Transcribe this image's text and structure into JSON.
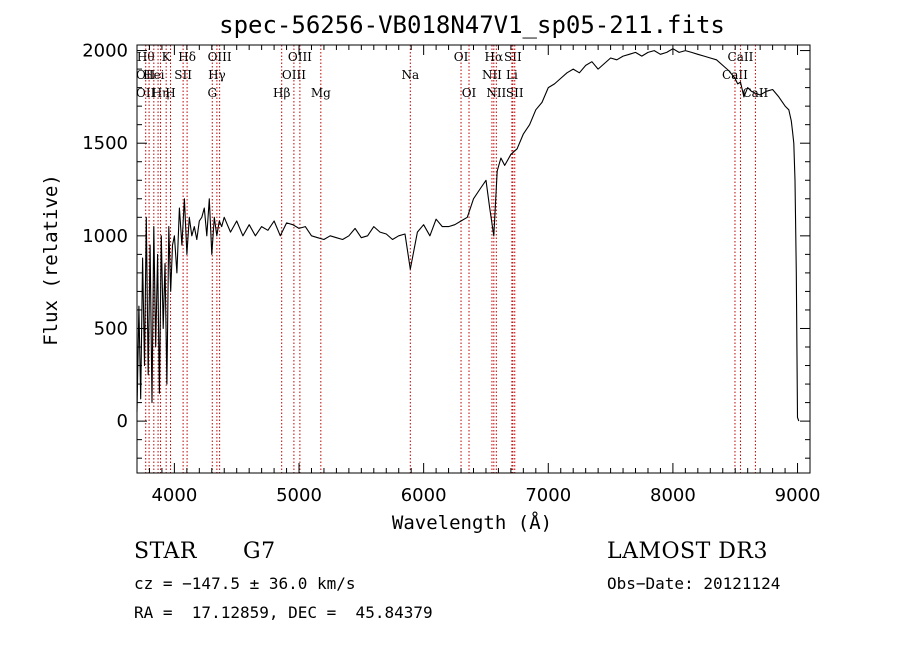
{
  "chart_data": {
    "type": "line",
    "title": "spec-56256-VB018N47V1_sp05-211.fits",
    "xlabel": "Wavelength (Å)",
    "ylabel": "Flux (relative)",
    "xlim": [
      3700,
      9100
    ],
    "ylim": [
      -280,
      2030
    ],
    "xticks": [
      4000,
      5000,
      6000,
      7000,
      8000,
      9000
    ],
    "yticks": [
      0,
      500,
      1000,
      1500,
      2000
    ],
    "grid": false,
    "series": [
      {
        "name": "flux",
        "x": [
          3700,
          3715,
          3730,
          3745,
          3760,
          3775,
          3790,
          3805,
          3820,
          3835,
          3850,
          3865,
          3880,
          3895,
          3910,
          3925,
          3940,
          3955,
          3970,
          3985,
          4000,
          4020,
          4040,
          4060,
          4080,
          4100,
          4120,
          4140,
          4160,
          4180,
          4200,
          4220,
          4240,
          4260,
          4280,
          4300,
          4320,
          4340,
          4360,
          4380,
          4400,
          4450,
          4500,
          4550,
          4600,
          4650,
          4700,
          4750,
          4800,
          4850,
          4900,
          4950,
          5000,
          5050,
          5100,
          5150,
          5200,
          5250,
          5300,
          5350,
          5400,
          5450,
          5500,
          5550,
          5600,
          5650,
          5700,
          5750,
          5800,
          5850,
          5893,
          5950,
          6000,
          6050,
          6100,
          6150,
          6200,
          6250,
          6300,
          6350,
          6400,
          6450,
          6500,
          6530,
          6563,
          6590,
          6620,
          6650,
          6700,
          6750,
          6800,
          6850,
          6900,
          6950,
          7000,
          7050,
          7100,
          7150,
          7200,
          7250,
          7300,
          7350,
          7400,
          7450,
          7500,
          7550,
          7600,
          7650,
          7700,
          7750,
          7800,
          7850,
          7900,
          7950,
          8000,
          8050,
          8100,
          8150,
          8200,
          8250,
          8300,
          8350,
          8400,
          8450,
          8498,
          8520,
          8542,
          8570,
          8600,
          8630,
          8662,
          8700,
          8750,
          8800,
          8850,
          8900,
          8930,
          8950,
          8960,
          8970,
          8980,
          8990,
          9000,
          9010
        ],
        "y": [
          50,
          620,
          120,
          880,
          300,
          1100,
          250,
          950,
          100,
          1050,
          400,
          900,
          150,
          1000,
          500,
          850,
          200,
          1050,
          700,
          950,
          1000,
          800,
          1150,
          950,
          1200,
          900,
          1100,
          1000,
          1050,
          980,
          1080,
          1100,
          1150,
          1000,
          1200,
          900,
          1100,
          1000,
          1080,
          1050,
          1100,
          1020,
          1080,
          1000,
          1060,
          1000,
          1050,
          1030,
          1080,
          1000,
          1070,
          1060,
          1040,
          1050,
          1000,
          990,
          980,
          1000,
          990,
          980,
          1000,
          1040,
          990,
          1000,
          1050,
          1020,
          1010,
          980,
          1000,
          1010,
          820,
          1020,
          1060,
          1000,
          1090,
          1050,
          1050,
          1060,
          1080,
          1100,
          1200,
          1250,
          1300,
          1150,
          1000,
          1350,
          1420,
          1380,
          1440,
          1470,
          1550,
          1600,
          1680,
          1720,
          1800,
          1820,
          1850,
          1880,
          1900,
          1880,
          1920,
          1940,
          1900,
          1930,
          1960,
          1950,
          1970,
          1980,
          1990,
          1970,
          1990,
          2000,
          1980,
          1990,
          2010,
          1990,
          2000,
          1990,
          1980,
          1970,
          1960,
          1950,
          1920,
          1890,
          1850,
          1820,
          1830,
          1750,
          1800,
          1780,
          1770,
          1760,
          1780,
          1790,
          1750,
          1700,
          1680,
          1620,
          1560,
          1500,
          1300,
          800,
          20,
          0
        ]
      }
    ],
    "lines": [
      {
        "wave": 3770,
        "labels": [
          "H&#952;",
          "OII",
          "OII"
        ],
        "rows": [
          1,
          2,
          3
        ]
      },
      {
        "wave": 3797,
        "labels": [],
        "rows": []
      },
      {
        "wave": 3835,
        "labels": [
          "Hei"
        ],
        "rows": [
          2
        ]
      },
      {
        "wave": 3869,
        "labels": [],
        "rows": []
      },
      {
        "wave": 3889,
        "labels": [
          "H&#951;"
        ],
        "rows": [
          3
        ]
      },
      {
        "wave": 3934,
        "labels": [
          "K"
        ],
        "rows": [
          1
        ]
      },
      {
        "wave": 3969,
        "labels": [
          "H"
        ],
        "rows": [
          3
        ]
      },
      {
        "wave": 4070,
        "labels": [
          "SII"
        ],
        "rows": [
          2
        ]
      },
      {
        "wave": 4102,
        "labels": [
          "H&#948;"
        ],
        "rows": [
          1
        ]
      },
      {
        "wave": 4304,
        "labels": [
          "G"
        ],
        "rows": [
          3
        ]
      },
      {
        "wave": 4341,
        "labels": [
          "H&#947;"
        ],
        "rows": [
          2
        ]
      },
      {
        "wave": 4363,
        "labels": [
          "OIII"
        ],
        "rows": [
          1
        ]
      },
      {
        "wave": 4861,
        "labels": [
          "H&#946;"
        ],
        "rows": [
          3
        ]
      },
      {
        "wave": 4959,
        "labels": [
          "OIII"
        ],
        "rows": [
          2
        ]
      },
      {
        "wave": 5007,
        "labels": [
          "OIII"
        ],
        "rows": [
          1
        ]
      },
      {
        "wave": 5175,
        "labels": [
          "Mg"
        ],
        "rows": [
          3
        ]
      },
      {
        "wave": 5893,
        "labels": [
          "Na"
        ],
        "rows": [
          2
        ]
      },
      {
        "wave": 6300,
        "labels": [
          "OI"
        ],
        "rows": [
          1
        ]
      },
      {
        "wave": 6364,
        "labels": [
          "OI"
        ],
        "rows": [
          3
        ]
      },
      {
        "wave": 6548,
        "labels": [
          "NII"
        ],
        "rows": [
          2
        ]
      },
      {
        "wave": 6563,
        "labels": [
          "H&#945;"
        ],
        "rows": [
          1
        ]
      },
      {
        "wave": 6583,
        "labels": [
          "NII"
        ],
        "rows": [
          3
        ]
      },
      {
        "wave": 6708,
        "labels": [
          "Li"
        ],
        "rows": [
          2
        ]
      },
      {
        "wave": 6716,
        "labels": [
          "SII"
        ],
        "rows": [
          1
        ]
      },
      {
        "wave": 6731,
        "labels": [
          "SII"
        ],
        "rows": [
          3
        ]
      },
      {
        "wave": 8498,
        "labels": [
          "CaII"
        ],
        "rows": [
          2
        ]
      },
      {
        "wave": 8542,
        "labels": [
          "CaII"
        ],
        "rows": [
          1
        ]
      },
      {
        "wave": 8662,
        "labels": [
          "CaII"
        ],
        "rows": [
          3
        ]
      }
    ]
  },
  "info": {
    "object_class": "STAR",
    "subclass": "G7",
    "survey": "LAMOST DR3",
    "redshift_line": "cz = −147.5 ± 36.0 km/s",
    "obs_date_line": "Obs−Date: 20121124",
    "coords_line": "RA =  17.12859, DEC =  45.84379"
  },
  "colors": {
    "spectrum": "#000000",
    "line_markers": "#c00000",
    "axes": "#000000"
  }
}
